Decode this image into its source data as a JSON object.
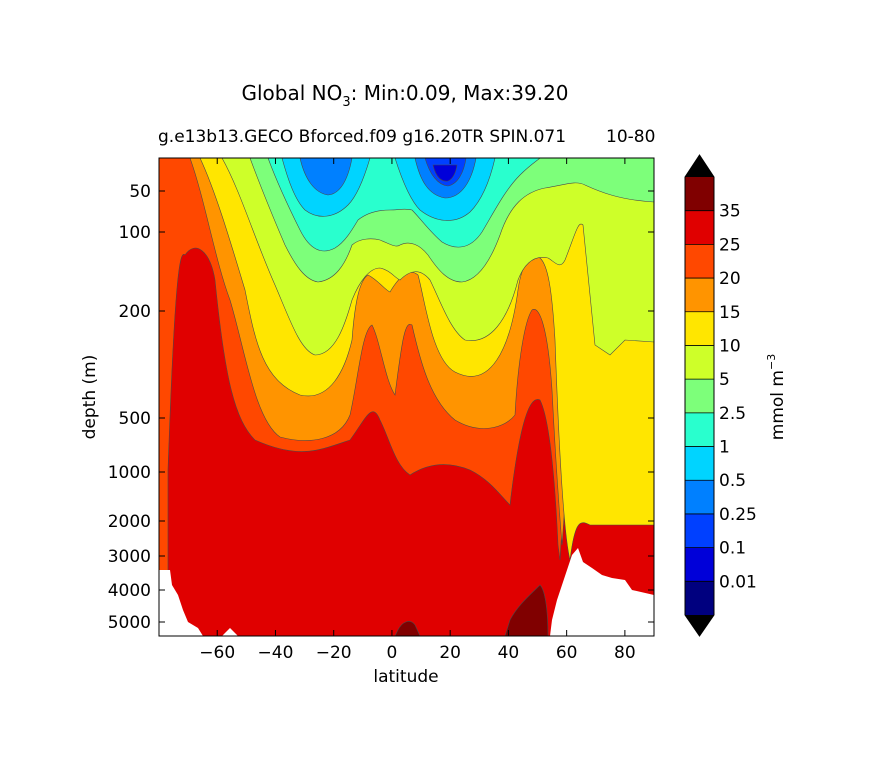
{
  "chart_data": {
    "type": "contour",
    "title_main": "Global NO",
    "title_sub_script": "3",
    "title_rest": ": Min:0.09, Max:39.20",
    "subtitle": "g.e13b13.GECO Bforced.f09 g16.20TR SPIN.071",
    "subtitle_overlap": "10-80",
    "xlabel": "latitude",
    "ylabel": "depth (m)",
    "xlim": [
      -80,
      90
    ],
    "x_ticks": [
      -60,
      -40,
      -20,
      0,
      20,
      40,
      60,
      80
    ],
    "x_tick_labels": [
      "−60",
      "−40",
      "−20",
      "0",
      "20",
      "40",
      "60",
      "80"
    ],
    "y_ticks": [
      50,
      100,
      200,
      500,
      1000,
      2000,
      3000,
      4000,
      5000
    ],
    "y_tick_labels": [
      "50",
      "100",
      "200",
      "500",
      "1000",
      "2000",
      "3000",
      "4000",
      "5000"
    ],
    "y_inverted": true,
    "min": 0.09,
    "max": 39.2,
    "colorbar": {
      "label": "mmol m",
      "label_sup": "−3",
      "levels": [
        "0.01",
        "0.1",
        "0.25",
        "0.5",
        "1",
        "2.5",
        "5",
        "10",
        "15",
        "20",
        "25",
        "35"
      ],
      "colors": [
        "#00007f",
        "#0000d9",
        "#0040ff",
        "#0080ff",
        "#00d4ff",
        "#29ffce",
        "#7dff7a",
        "#ceff29",
        "#ffe600",
        "#ff9400",
        "#ff4800",
        "#e00000",
        "#800000"
      ],
      "extend": "both",
      "extend_colors": [
        "#000000",
        "#000000"
      ]
    }
  }
}
